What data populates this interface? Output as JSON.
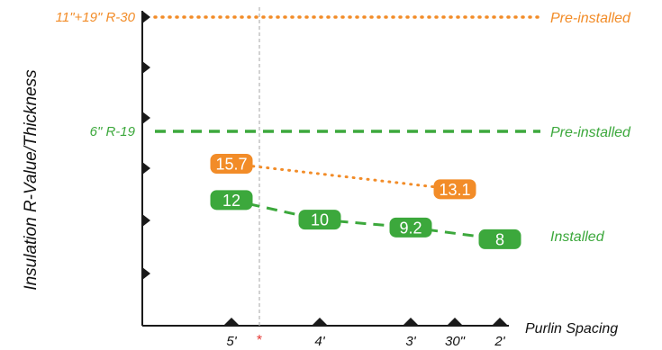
{
  "chart_data": {
    "type": "line",
    "ylabel": "Insulation R-Value/Thickness",
    "xlabel": "Purlin Spacing",
    "x_categories": [
      "5'",
      "4'",
      "3'",
      "30\"",
      "2'"
    ],
    "x_marker_label": "*",
    "x_marker_position": "between 5' and 4'",
    "reference_lines": [
      {
        "label": "11\"+19\" R-30",
        "status": "Pre-installed",
        "color": "#F28C28",
        "style": "dotted"
      },
      {
        "label": "6\" R-19",
        "status": "Pre-installed",
        "color": "#3CA83C",
        "style": "dashed"
      }
    ],
    "series": [
      {
        "color": "#F28C28",
        "style": "dotted",
        "points": [
          {
            "x": "5'",
            "y": 15.7
          },
          {
            "x": "30\"",
            "y": 13.1
          }
        ]
      },
      {
        "name": "Installed",
        "color": "#3CA83C",
        "style": "dashed",
        "points": [
          {
            "x": "5'",
            "y": 12
          },
          {
            "x": "4'",
            "y": 10
          },
          {
            "x": "3'",
            "y": 9.2
          },
          {
            "x": "2'",
            "y": 8
          }
        ]
      }
    ],
    "grid": false
  },
  "colors": {
    "orange": "#F28C28",
    "green": "#3CA83C",
    "axis": "#1a1a1a",
    "guide": "#b5b5b5",
    "marker": "#e53935"
  }
}
